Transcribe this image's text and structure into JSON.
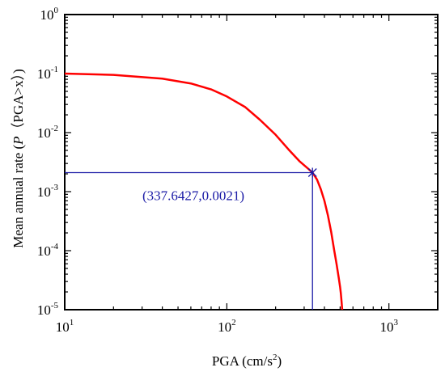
{
  "chart_data": {
    "type": "line",
    "xlabel": {
      "text": "PGA (cm/s",
      "sup": "2",
      "tail": ")"
    },
    "ylabel": {
      "pre": "Mean annual rate (",
      "italic": "P",
      "post": "（PGA>x）)"
    },
    "xscale": "log",
    "yscale": "log",
    "xlim": [
      10,
      2000
    ],
    "ylim": [
      1e-05,
      1
    ],
    "grid": false,
    "x_ticks": [
      {
        "base": "10",
        "exp": "1"
      },
      {
        "base": "10",
        "exp": "2"
      },
      {
        "base": "10",
        "exp": "3"
      }
    ],
    "y_ticks": [
      {
        "base": "10",
        "exp": "0"
      },
      {
        "base": "10",
        "exp": "-1"
      },
      {
        "base": "10",
        "exp": "-2"
      },
      {
        "base": "10",
        "exp": "-3"
      },
      {
        "base": "10",
        "exp": "-4"
      },
      {
        "base": "10",
        "exp": "-5"
      }
    ],
    "series": [
      {
        "color": "#ff0000",
        "x": [
          10,
          20,
          40,
          60,
          80,
          100,
          130,
          160,
          200,
          240,
          280,
          320,
          337.64,
          360,
          380,
          400,
          420,
          440,
          460,
          475,
          490,
          500,
          505,
          510,
          515
        ],
        "y": [
          0.1,
          0.095,
          0.082,
          0.068,
          0.054,
          0.041,
          0.027,
          0.0165,
          0.0092,
          0.0052,
          0.0033,
          0.0024,
          0.0021,
          0.0016,
          0.0011,
          0.0007,
          0.0004,
          0.00021,
          0.0001,
          6e-05,
          3.5e-05,
          2.4e-05,
          1.9e-05,
          1.4e-05,
          1e-05
        ]
      }
    ],
    "marked_point": {
      "x": 337.6427,
      "y": 0.0021,
      "label": "(337.6427,0.0021)",
      "color": "#1a1aa6"
    }
  }
}
